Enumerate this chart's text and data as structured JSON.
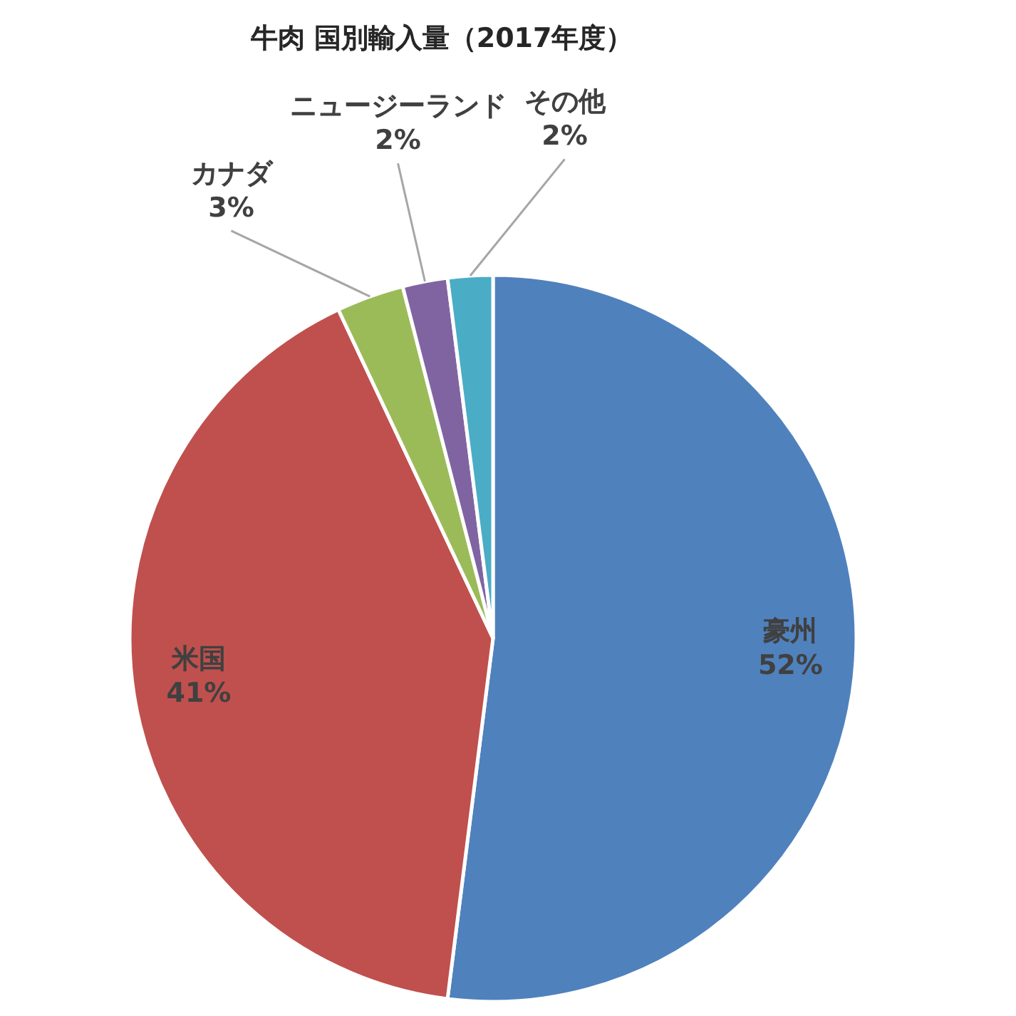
{
  "chart_data": {
    "type": "pie",
    "title": "牛肉 国別輸入量（2017年度）",
    "categories": [
      "豪州",
      "米国",
      "カナダ",
      "ニュージーランド",
      "その他"
    ],
    "values": [
      52,
      41,
      3,
      2,
      2
    ],
    "value_labels": [
      "52%",
      "41%",
      "3%",
      "2%",
      "2%"
    ],
    "colors": [
      "#4f81bd",
      "#c0504d",
      "#9bbb59",
      "#8064a2",
      "#4bacc6"
    ],
    "legend": false
  }
}
